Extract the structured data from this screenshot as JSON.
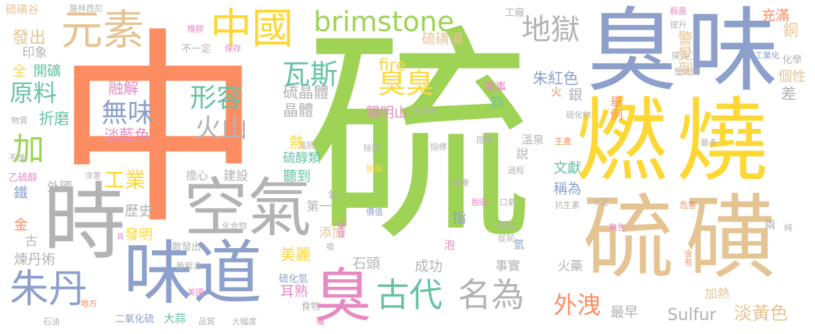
{
  "colors": {
    "green": "#9fd356",
    "orange": "#fc8d62",
    "blue": "#8da0cb",
    "yellow": "#fdd835",
    "tan": "#e5c494",
    "gray": "#b3b3b3",
    "teal": "#66c2a5",
    "pink": "#e78ac3"
  },
  "words": {
    "liu": "硫",
    "zhong": "中",
    "chou": "臭",
    "wei": "味",
    "ran": "燃",
    "shao": "燒",
    "huang": "磺",
    "shi": "時",
    "kongqi": "空氣",
    "weidao": "味道",
    "yuansu": "元素",
    "zhongguo": "中國",
    "brimstone": "brimstone",
    "diyu": "地獄",
    "wasi": "瓦斯",
    "chouchou": "臭臭",
    "xingrong": "形容",
    "wuwei": "無味",
    "huoshan": "火山",
    "yuanliao": "原料",
    "jia": "加",
    "zhudan": "朱丹",
    "gongye": "工業",
    "gudai": "古代",
    "mingwei": "名為",
    "waixie": "外洩",
    "sulfur": "Sulfur",
    "danhuangse": "淡黃色",
    "liuhuanggu": "硫磺谷",
    "panlin": "盤林西尼",
    "gongchang": "工廠",
    "chongman": "充滿",
    "shajun": "殺菌",
    "tisheng": "提升",
    "fachu": "發出",
    "yinxiang": "印象",
    "xiangjiao": "橡膠",
    "buyiding": "不一定",
    "baocun": "保存",
    "liuhuangtang": "硫磺湯",
    "gongyehua": "工業化",
    "huaxue": "化學",
    "caozuo": "操作",
    "quan": "全",
    "kaikuang": "開礦",
    "fire": "fire",
    "gexing": "個性",
    "jingjuedao": "警覺到",
    "rongjie": "融解",
    "zhuhongse": "朱紅色",
    "huaishi": "壞事",
    "cha": "差",
    "liujingti": "硫晶體",
    "jingti": "晶體",
    "zhemo": "折磨",
    "wuzhi": "物質",
    "yangmingshan": "陽明山",
    "huashenwei": "化身為",
    "si": "四",
    "liuhuawu": "硫化物",
    "danlanse": "淡藍色",
    "fengxian": "風險",
    "chuyi": "除蹣",
    "zhibiao": "指標",
    "tixing": "提醒",
    "wenquan": "溫泉",
    "shengchan": "生產",
    "zuiduo": "最多",
    "buquai": "不愧",
    "liuchunlei": "硫醇類",
    "shuo": "說",
    "kaicai": "開採",
    "wenxian": "文獻",
    "guocheng": "過程",
    "yiliuchun": "乙硫醇",
    "yangcong": "洋蔥",
    "danxin": "擔心",
    "jianshe": "建設",
    "tingdao": "聽到",
    "waiguo": "外國",
    "yiliao": "醫療",
    "chengwei": "稱為",
    "tie": "鐵",
    "diyi": "第一",
    "tuoliu": "脫硫",
    "kouqi": "口氣",
    "kangshengsu": "抗生素",
    "shizu": "十足",
    "weihai": "危害",
    "lishi": "歷史",
    "jiazhi": "價值",
    "zhi": "指",
    "jin": "金",
    "huahewu": "化合物",
    "tianjia": "添加",
    "liusuan": "硫酸",
    "wuse": "無色",
    "faming": "發明",
    "congqian": "從前",
    "gu": "古",
    "liandanshu": "煉丹術",
    "sanfachu": "散發出",
    "qian": "嗆",
    "pao": "泡",
    "meili": "美麗",
    "chenggong": "成功",
    "shishi": "事實",
    "shitou": "石頭",
    "putaojiu": "葡萄酒",
    "huoyao": "火藥",
    "jiare": "加熱",
    "ershu": "耳熟",
    "meiguo": "美國",
    "liuhuaqing": "硫化氫",
    "difang": "地方",
    "zuizao": "最早",
    "shiwu": "食物",
    "eryanghualiu": "二氧化硫",
    "dasuan": "大蒜",
    "pinzhi": "品質",
    "dafudu": "大幅度",
    "shiyou": "石油",
    "chui": "囑",
    "tong": "銅",
    "juli": "舉例",
    "huo": "火",
    "yin": "銀",
    "re": "熱",
    "yang": "氧",
    "yu": "員",
    "qing": "氫",
    "shu": "屬實",
    "liang": "兩",
    "chun": "純",
    "hanyou": "含有"
  }
}
